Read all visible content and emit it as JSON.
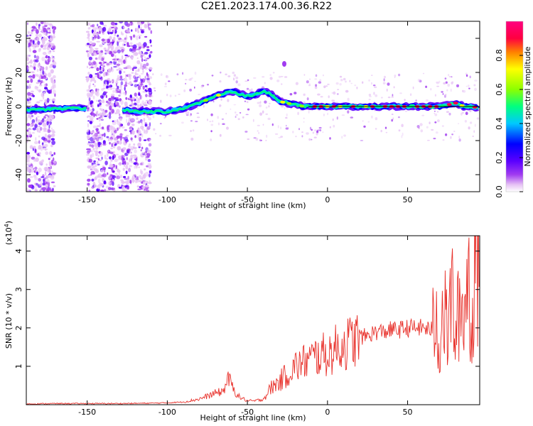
{
  "page": {
    "title": "C2E1.2023.174.00.36.R22"
  },
  "colors": {
    "snr_line": "#e8302a",
    "signal_line": "#000000",
    "axis": "#000000",
    "colormap": [
      "#ffffff",
      "#e7c4f5",
      "#a13cf0",
      "#5a00ff",
      "#0000ff",
      "#00c8ff",
      "#00ff80",
      "#8cff00",
      "#ffff00",
      "#ff8000",
      "#ff0040",
      "#ff0080"
    ]
  },
  "chart_data": [
    {
      "type": "heatmap",
      "title": "",
      "xlabel": "Height of straight line (km)",
      "ylabel": "Frequency (Hz)",
      "xlim": [
        -188,
        95
      ],
      "ylim": [
        -50,
        50
      ],
      "x_ticks": [
        -150,
        -100,
        -50,
        0,
        50
      ],
      "y_ticks": [
        -40,
        -20,
        0,
        20,
        40
      ],
      "colorbar": {
        "label": "Normalized spectral amplitude",
        "range": [
          0,
          1
        ],
        "ticks": [
          "0.0",
          "0.2",
          "0.4",
          "0.6",
          "0.8"
        ]
      },
      "ridge": {
        "description_points_x": [
          -188,
          -160,
          -140,
          -125,
          -120,
          -110,
          -100,
          -90,
          -80,
          -70,
          -60,
          -50,
          -45,
          -40,
          -35,
          -30,
          -25,
          -20,
          -15,
          -10,
          0,
          10,
          20,
          30,
          40,
          50,
          60,
          70,
          80,
          85,
          90,
          95
        ],
        "description_points_y": [
          -2,
          -1,
          -1,
          -2,
          -3,
          -3,
          -3,
          -1,
          2,
          6,
          9,
          6,
          7,
          9,
          7,
          3,
          2,
          1,
          0,
          0,
          0,
          0,
          0,
          0,
          0,
          0,
          0,
          0,
          2,
          0,
          0,
          -1
        ]
      },
      "noise_regions": [
        [
          -188,
          -170
        ],
        [
          -150,
          -110
        ]
      ],
      "flat_signal": {
        "x_range": [
          -12,
          95
        ],
        "y": 0
      }
    },
    {
      "type": "line",
      "title": "",
      "xlabel": "Height of straight line (km)",
      "ylabel": "SNR (10 * v/v)",
      "y_multiplier": "(x10",
      "y_multiplier_exp": "4",
      "y_multiplier_close": ")",
      "xlim": [
        -188,
        95
      ],
      "ylim": [
        0,
        4.4
      ],
      "x_ticks": [
        -150,
        -100,
        -50,
        0,
        50
      ],
      "y_ticks": [
        1,
        2,
        3,
        4
      ],
      "series": [
        {
          "x": [
            -188,
            -170,
            -150,
            -130,
            -110,
            -100,
            -90,
            -80,
            -75,
            -70,
            -65,
            -62,
            -58,
            -55,
            -50,
            -45,
            -40,
            -35,
            -30,
            -25,
            -20,
            -15,
            -10,
            -5,
            0,
            5,
            10,
            15,
            20,
            25,
            30,
            35,
            40,
            45,
            50,
            55,
            60,
            65,
            68,
            70,
            72,
            75,
            78,
            80,
            82,
            85,
            88,
            90,
            92,
            95
          ],
          "y": [
            0.02,
            0.03,
            0.03,
            0.03,
            0.04,
            0.05,
            0.07,
            0.15,
            0.22,
            0.3,
            0.35,
            0.7,
            0.35,
            0.2,
            0.1,
            0.1,
            0.15,
            0.45,
            0.6,
            0.8,
            1.0,
            1.1,
            1.2,
            1.3,
            1.3,
            1.45,
            1.55,
            1.65,
            1.75,
            1.8,
            1.9,
            1.9,
            1.95,
            1.95,
            2.0,
            2.0,
            2.0,
            1.95,
            2.3,
            1.5,
            2.5,
            1.9,
            2.9,
            1.5,
            2.6,
            2.4,
            3.5,
            1.6,
            4.3,
            3.0
          ]
        }
      ]
    }
  ]
}
